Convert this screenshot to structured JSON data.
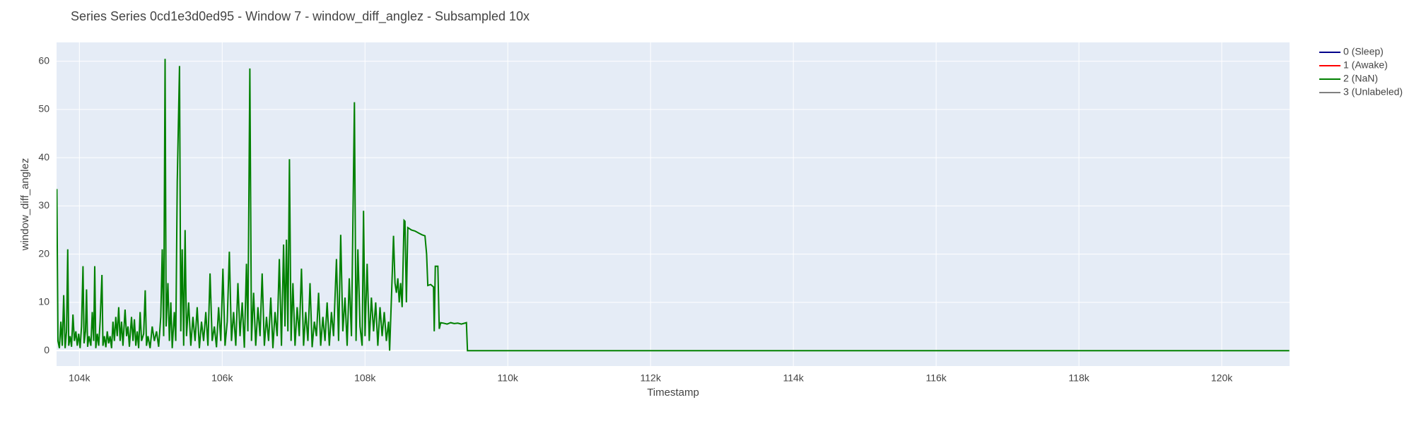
{
  "chart_data": {
    "type": "line",
    "title": "Series Series 0cd1e3d0ed95 - Window 7 - window_diff_anglez - Subsampled 10x",
    "xlabel": "Timestamp",
    "ylabel": "window_diff_anglez",
    "xlim": [
      103680,
      120950
    ],
    "ylim": [
      -3.2,
      63.9
    ],
    "xticks": [
      {
        "value": 104000,
        "label": "104k"
      },
      {
        "value": 106000,
        "label": "106k"
      },
      {
        "value": 108000,
        "label": "108k"
      },
      {
        "value": 110000,
        "label": "110k"
      },
      {
        "value": 112000,
        "label": "112k"
      },
      {
        "value": 114000,
        "label": "114k"
      },
      {
        "value": 116000,
        "label": "116k"
      },
      {
        "value": 118000,
        "label": "118k"
      },
      {
        "value": 120000,
        "label": "120k"
      }
    ],
    "yticks": [
      0,
      10,
      20,
      30,
      40,
      50,
      60
    ],
    "grid": true,
    "legend": "right",
    "series": [
      {
        "name": "0 (Sleep)",
        "color": "#00008b",
        "x": [],
        "values": []
      },
      {
        "name": "1 (Awake)",
        "color": "#ff0000",
        "x": [],
        "values": []
      },
      {
        "name": "2 (NaN)",
        "color": "#008000",
        "x": [
          103684,
          103700,
          103720,
          103740,
          103760,
          103780,
          103800,
          103820,
          103836,
          103850,
          103870,
          103890,
          103910,
          103930,
          103950,
          103970,
          103990,
          104010,
          104030,
          104050,
          104065,
          104085,
          104100,
          104115,
          104135,
          104160,
          104180,
          104200,
          104215,
          104230,
          104250,
          104270,
          104290,
          104316,
          104330,
          104350,
          104370,
          104390,
          104410,
          104430,
          104450,
          104470,
          104490,
          104510,
          104530,
          104550,
          104570,
          104590,
          104610,
          104640,
          104660,
          104680,
          104700,
          104730,
          104750,
          104770,
          104790,
          104810,
          104830,
          104850,
          104870,
          104900,
          104922,
          104940,
          104960,
          104990,
          105020,
          105050,
          105080,
          105110,
          105140,
          105160,
          105180,
          105200,
          105215,
          105240,
          105260,
          105280,
          105300,
          105330,
          105350,
          105370,
          105402,
          105420,
          105440,
          105460,
          105480,
          105500,
          105530,
          105560,
          105590,
          105620,
          105650,
          105680,
          105710,
          105740,
          105770,
          105800,
          105830,
          105860,
          105890,
          105920,
          105950,
          105980,
          106010,
          106040,
          106070,
          106100,
          106130,
          106160,
          106190,
          106220,
          106250,
          106280,
          106310,
          106340,
          106360,
          106387,
          106410,
          106440,
          106470,
          106500,
          106530,
          106560,
          106590,
          106620,
          106650,
          106680,
          106710,
          106740,
          106770,
          106800,
          106830,
          106860,
          106880,
          106900,
          106920,
          106942,
          106965,
          106990,
          107020,
          107050,
          107080,
          107110,
          107140,
          107170,
          107200,
          107230,
          107260,
          107290,
          107320,
          107350,
          107380,
          107410,
          107440,
          107470,
          107500,
          107530,
          107560,
          107600,
          107630,
          107660,
          107690,
          107720,
          107750,
          107780,
          107810,
          107852,
          107875,
          107900,
          107930,
          107960,
          107980,
          108000,
          108030,
          108060,
          108090,
          108120,
          108150,
          108180,
          108210,
          108240,
          108270,
          108300,
          108330,
          108345,
          108380,
          108400,
          108420,
          108440,
          108460,
          108480,
          108500,
          108520,
          108547,
          108560,
          108580,
          108600,
          108650,
          108700,
          108760,
          108800,
          108840,
          108863,
          108880,
          108920,
          108960,
          108970,
          108985,
          109020,
          109040,
          109060,
          109100,
          109150,
          109200,
          109250,
          109300,
          109350,
          109420,
          109435,
          120947
        ],
        "values": [
          33.5,
          2,
          0.5,
          6,
          1,
          11.5,
          0.5,
          4,
          21,
          1,
          3,
          0.8,
          7.5,
          2,
          4,
          1,
          3.5,
          0.5,
          5,
          17.5,
          1.5,
          4,
          12.7,
          0.8,
          3,
          1,
          8,
          2,
          17.5,
          0.5,
          3.5,
          1,
          6,
          15.7,
          1,
          3,
          0.7,
          4,
          1.5,
          3,
          0.5,
          6,
          2,
          7,
          3,
          9,
          2,
          6,
          1,
          8.5,
          3,
          5,
          0.8,
          7,
          2,
          6.5,
          1,
          4,
          0.5,
          8,
          2,
          3.5,
          12.5,
          1,
          3,
          0.5,
          5,
          2,
          4,
          0.8,
          7,
          21,
          3,
          60.5,
          5,
          14,
          2,
          10,
          0.5,
          8,
          2,
          35,
          59,
          4,
          21,
          1,
          25,
          3,
          10,
          1,
          7,
          2,
          9,
          0.5,
          6,
          2,
          8,
          1,
          16,
          2,
          5,
          0.7,
          9,
          2,
          17,
          1,
          6,
          20.5,
          2,
          8,
          1,
          14,
          3,
          10,
          0.6,
          18,
          4,
          58.5,
          2,
          12,
          1,
          9,
          3,
          16,
          1,
          7,
          2,
          11,
          0.5,
          8,
          3,
          19,
          1,
          22,
          5,
          23,
          4,
          39.7,
          2,
          14,
          1,
          9,
          3,
          17,
          1,
          8,
          2,
          14,
          0.7,
          6,
          3,
          12,
          1,
          7,
          2,
          10,
          1,
          8,
          3,
          19,
          2,
          24,
          4,
          11,
          1,
          15,
          3,
          51.5,
          2,
          21,
          5,
          1,
          29,
          3,
          18,
          2,
          11,
          4,
          10,
          1,
          9,
          3,
          8,
          2,
          6,
          0,
          15,
          23.8,
          14,
          12,
          15,
          10,
          14,
          9,
          27,
          26.8,
          10,
          25.5,
          25,
          24.8,
          24.3,
          24,
          23.8,
          20,
          13.5,
          13.7,
          13.2,
          4,
          17.5,
          17.5,
          4.5,
          5.8,
          5.7,
          5.5,
          5.8,
          5.6,
          5.7,
          5.5,
          5.8,
          0,
          0
        ]
      },
      {
        "name": "3 (Unlabeled)",
        "color": "#808080",
        "x": [],
        "values": []
      }
    ]
  }
}
